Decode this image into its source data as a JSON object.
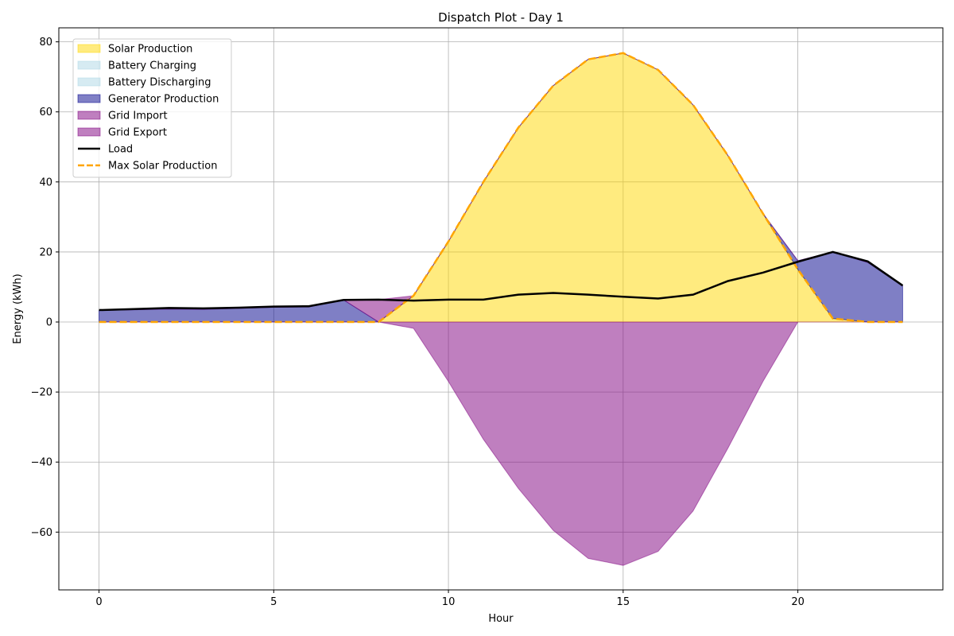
{
  "chart_data": {
    "type": "area",
    "title": "Dispatch Plot - Day 1",
    "xlabel": "Hour",
    "ylabel": "Energy (kWh)",
    "xlim": [
      -1.15,
      24.15
    ],
    "ylim": [
      -76.5,
      84
    ],
    "x_ticks": [
      0,
      5,
      10,
      15,
      20
    ],
    "x_tick_labels": [
      "0",
      "5",
      "10",
      "15",
      "20"
    ],
    "y_ticks": [
      -60,
      -40,
      -20,
      0,
      20,
      40,
      60,
      80
    ],
    "y_tick_labels": [
      "−60",
      "−40",
      "−20",
      "0",
      "20",
      "40",
      "60",
      "80"
    ],
    "grid": true,
    "legend_position": "top-left",
    "x": [
      0,
      1,
      2,
      3,
      4,
      5,
      6,
      7,
      8,
      9,
      10,
      11,
      12,
      13,
      14,
      15,
      16,
      17,
      18,
      19,
      20,
      21,
      22,
      23
    ],
    "series": [
      {
        "name": "Solar Production",
        "kind": "area",
        "color": "#ffd700",
        "values": [
          0,
          0,
          0,
          0,
          0,
          0,
          0,
          0,
          0,
          7.5,
          23,
          40,
          55.5,
          67.5,
          75,
          76.8,
          72,
          62,
          47.5,
          31,
          15,
          1,
          0,
          0
        ]
      },
      {
        "name": "Battery Charging",
        "kind": "area",
        "color": "#add8e6",
        "values": [
          0,
          0,
          0,
          0,
          0,
          0,
          0,
          0,
          0,
          0,
          0,
          0,
          0,
          0,
          0,
          0,
          0,
          0,
          0,
          0,
          0,
          0,
          0,
          0
        ]
      },
      {
        "name": "Battery Discharging",
        "kind": "area",
        "color": "#add8e6",
        "values": [
          0,
          0,
          0,
          0,
          0,
          0,
          0,
          0,
          0,
          0,
          0,
          0,
          0,
          0,
          0,
          0,
          0,
          0,
          0,
          0,
          0,
          0,
          0,
          0
        ]
      },
      {
        "name": "Generator Production",
        "kind": "area",
        "color": "#00008b",
        "values": [
          3.3,
          3.5,
          3.7,
          3.6,
          3.9,
          4.2,
          4.3,
          6.3,
          0,
          0,
          0,
          0,
          0,
          0,
          0,
          0,
          0,
          0,
          0,
          0,
          2.5,
          19,
          17,
          10.3
        ]
      },
      {
        "name": "Grid Import",
        "kind": "area",
        "color": "#800080",
        "values": [
          0,
          0,
          0,
          0,
          0,
          0,
          0,
          0,
          6.4,
          0,
          0,
          0,
          0,
          0,
          0,
          0,
          0,
          0,
          0,
          0,
          0,
          0,
          0,
          0
        ]
      },
      {
        "name": "Grid Export",
        "kind": "area",
        "color": "#800080",
        "values": [
          0,
          0,
          0,
          0,
          0,
          0,
          0,
          0,
          0,
          -1.8,
          -17,
          -33.5,
          -47.5,
          -59.5,
          -67.5,
          -69.5,
          -65.5,
          -54,
          -36,
          -17,
          0,
          0,
          0,
          0
        ]
      },
      {
        "name": "Load",
        "kind": "line",
        "color": "#000000",
        "values": [
          3.4,
          3.7,
          4.0,
          3.9,
          4.1,
          4.4,
          4.5,
          6.3,
          6.4,
          6.1,
          6.4,
          6.4,
          7.8,
          8.3,
          7.8,
          7.2,
          6.7,
          7.8,
          11.7,
          14.1,
          17.2,
          20.0,
          17.3,
          10.4
        ]
      },
      {
        "name": "Max Solar Production",
        "kind": "dashed-line",
        "color": "#ffa500",
        "values": [
          0,
          0,
          0,
          0,
          0,
          0,
          0,
          0,
          0,
          7.5,
          23,
          40,
          55.5,
          67.5,
          75,
          76.8,
          72,
          62,
          47.5,
          31,
          15,
          1,
          0,
          0
        ]
      }
    ]
  }
}
